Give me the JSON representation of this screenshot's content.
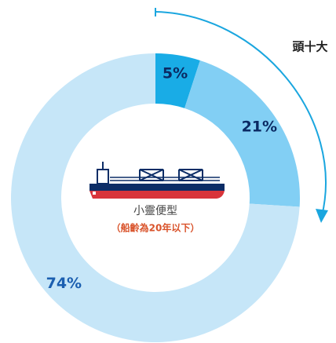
{
  "chart_data": {
    "type": "donut",
    "values": [
      5,
      21,
      74
    ],
    "value_labels": [
      "5%",
      "21%",
      "74%"
    ],
    "colors": [
      "#19ace6",
      "#82cff4",
      "#c6e6f8"
    ],
    "label_colors": [
      "#0b2a63",
      "#0b2a63",
      "#1b5fb0"
    ],
    "annotation": "頭十大",
    "center_title": "小靈便型",
    "center_subtitle": "（船齡為20年以下）"
  }
}
